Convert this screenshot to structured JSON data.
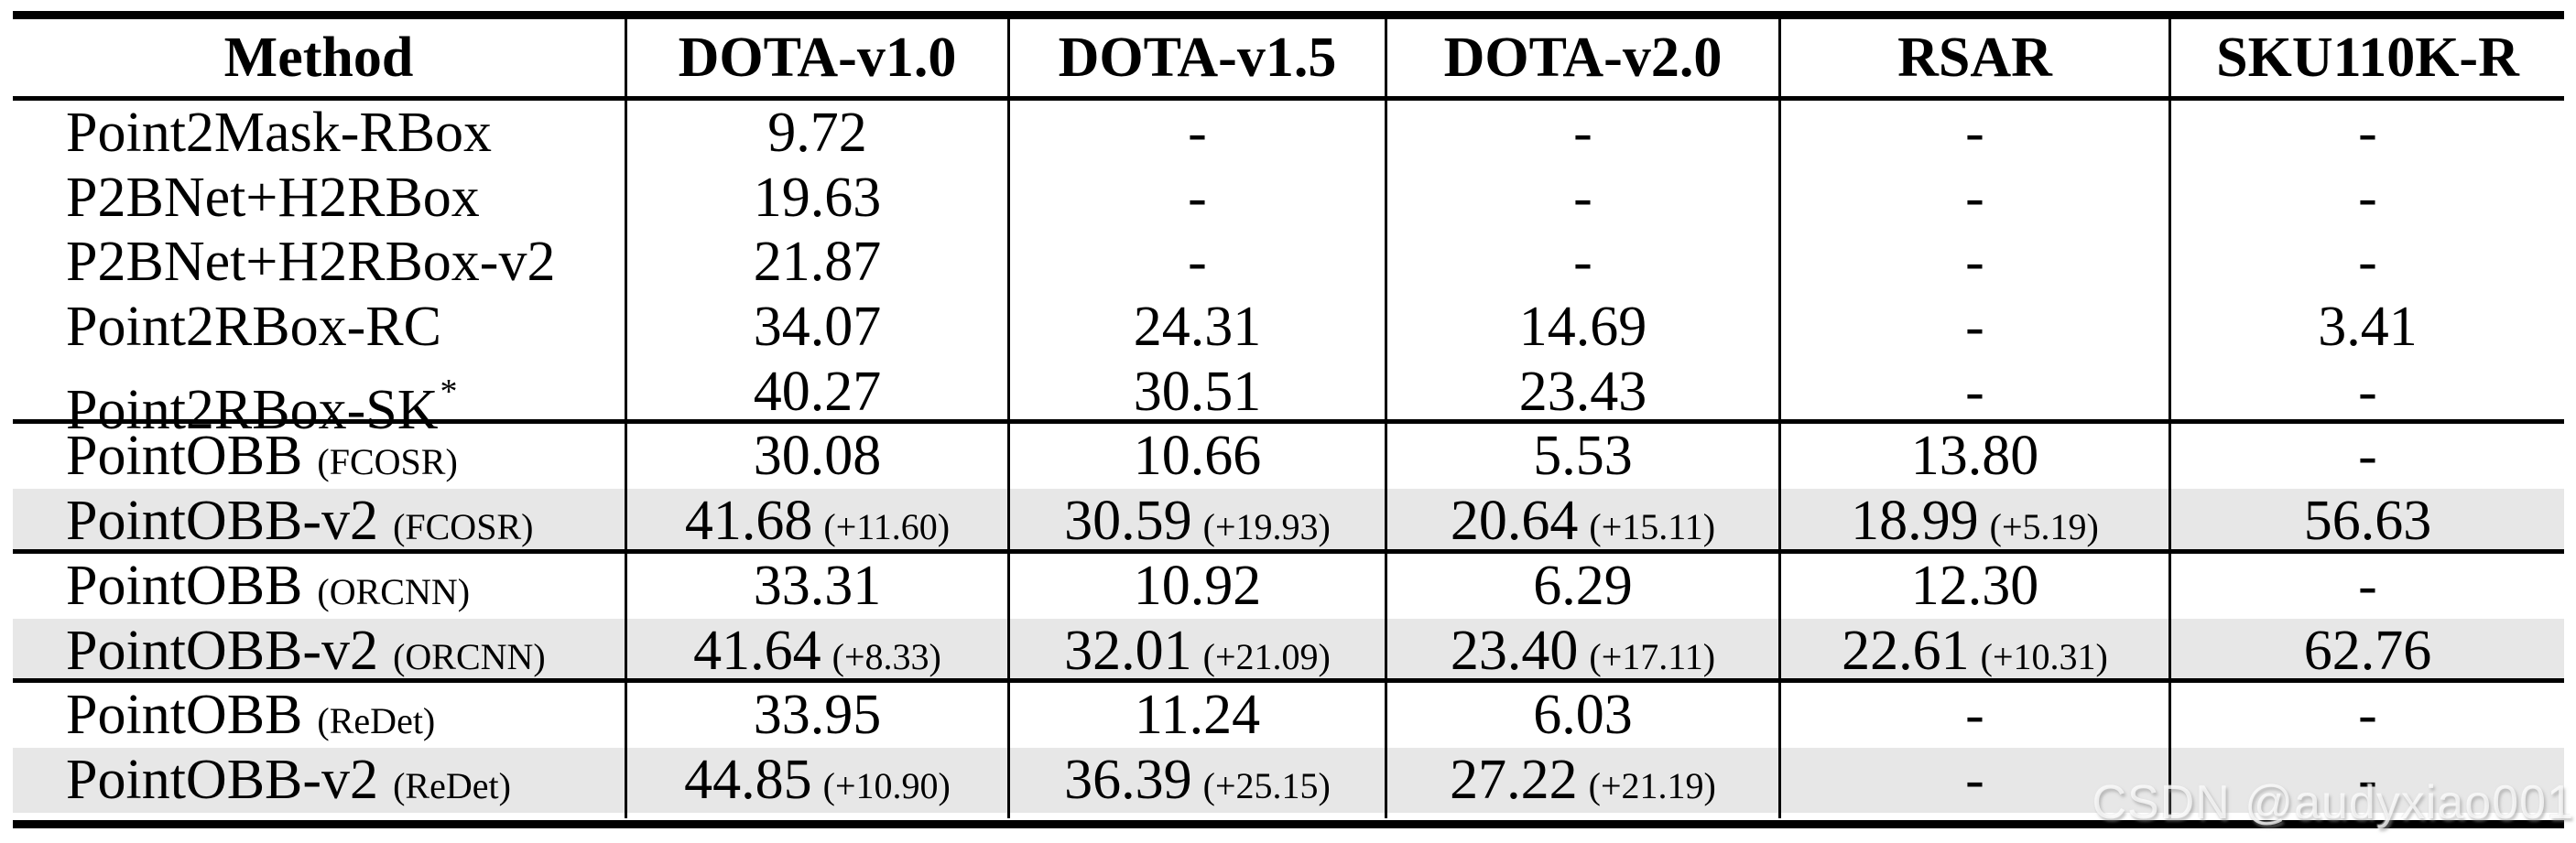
{
  "watermark": "CSDN @audyxiao001",
  "colors": {
    "row_highlight": "#e7e7e7",
    "rule": "#000000",
    "text": "#000000",
    "watermark": "#efefef"
  },
  "table": {
    "columns": [
      {
        "key": "method",
        "label": "Method"
      },
      {
        "key": "dota-v10",
        "label": "DOTA-v1.0"
      },
      {
        "key": "dota-v15",
        "label": "DOTA-v1.5"
      },
      {
        "key": "dota-v20",
        "label": "DOTA-v2.0"
      },
      {
        "key": "rsar",
        "label": "RSAR"
      },
      {
        "key": "sku110kr",
        "label": "SKU110K-R"
      }
    ],
    "rows": [
      {
        "method": "Point2Mask-RBox",
        "sup": "",
        "tag": "",
        "shaded": false,
        "rule_after": false,
        "cells": [
          {
            "v": "9.72"
          },
          {
            "v": "-"
          },
          {
            "v": "-"
          },
          {
            "v": "-"
          },
          {
            "v": "-"
          }
        ]
      },
      {
        "method": "P2BNet+H2RBox",
        "sup": "",
        "tag": "",
        "shaded": false,
        "rule_after": false,
        "cells": [
          {
            "v": "19.63"
          },
          {
            "v": "-"
          },
          {
            "v": "-"
          },
          {
            "v": "-"
          },
          {
            "v": "-"
          }
        ]
      },
      {
        "method": "P2BNet+H2RBox-v2",
        "sup": "",
        "tag": "",
        "shaded": false,
        "rule_after": false,
        "cells": [
          {
            "v": "21.87"
          },
          {
            "v": "-"
          },
          {
            "v": "-"
          },
          {
            "v": "-"
          },
          {
            "v": "-"
          }
        ]
      },
      {
        "method": "Point2RBox-RC",
        "sup": "",
        "tag": "",
        "shaded": false,
        "rule_after": false,
        "cells": [
          {
            "v": "34.07"
          },
          {
            "v": "24.31"
          },
          {
            "v": "14.69"
          },
          {
            "v": "-"
          },
          {
            "v": "3.41"
          }
        ]
      },
      {
        "method": "Point2RBox-SK",
        "sup": "*",
        "tag": "",
        "shaded": false,
        "rule_after": true,
        "cells": [
          {
            "v": "40.27"
          },
          {
            "v": "30.51"
          },
          {
            "v": "23.43"
          },
          {
            "v": "-"
          },
          {
            "v": "-"
          }
        ]
      },
      {
        "method": "PointOBB",
        "sup": "",
        "tag": "(FCOSR)",
        "shaded": false,
        "rule_after": false,
        "cells": [
          {
            "v": "30.08"
          },
          {
            "v": "10.66"
          },
          {
            "v": "5.53"
          },
          {
            "v": "13.80"
          },
          {
            "v": "-"
          }
        ]
      },
      {
        "method": "PointOBB-v2",
        "sup": "",
        "tag": "(FCOSR)",
        "shaded": true,
        "rule_after": true,
        "cells": [
          {
            "v": "41.68",
            "d": "(+11.60)"
          },
          {
            "v": "30.59",
            "d": "(+19.93)"
          },
          {
            "v": "20.64",
            "d": "(+15.11)"
          },
          {
            "v": "18.99",
            "d": "(+5.19)"
          },
          {
            "v": "56.63"
          }
        ]
      },
      {
        "method": "PointOBB",
        "sup": "",
        "tag": "(ORCNN)",
        "shaded": false,
        "rule_after": false,
        "cells": [
          {
            "v": "33.31"
          },
          {
            "v": "10.92"
          },
          {
            "v": "6.29"
          },
          {
            "v": "12.30"
          },
          {
            "v": "-"
          }
        ]
      },
      {
        "method": "PointOBB-v2",
        "sup": "",
        "tag": "(ORCNN)",
        "shaded": true,
        "rule_after": true,
        "cells": [
          {
            "v": "41.64",
            "d": "(+8.33)"
          },
          {
            "v": "32.01",
            "d": "(+21.09)"
          },
          {
            "v": "23.40",
            "d": "(+17.11)"
          },
          {
            "v": "22.61",
            "d": "(+10.31)"
          },
          {
            "v": "62.76"
          }
        ]
      },
      {
        "method": "PointOBB",
        "sup": "",
        "tag": "(ReDet)",
        "shaded": false,
        "rule_after": false,
        "cells": [
          {
            "v": "33.95"
          },
          {
            "v": "11.24"
          },
          {
            "v": "6.03"
          },
          {
            "v": "-"
          },
          {
            "v": "-"
          }
        ]
      },
      {
        "method": "PointOBB-v2",
        "sup": "",
        "tag": "(ReDet)",
        "shaded": true,
        "rule_after": false,
        "cells": [
          {
            "v": "44.85",
            "d": "(+10.90)"
          },
          {
            "v": "36.39",
            "d": "(+25.15)"
          },
          {
            "v": "27.22",
            "d": "(+21.19)"
          },
          {
            "v": "-"
          },
          {
            "v": "-"
          }
        ]
      }
    ]
  }
}
